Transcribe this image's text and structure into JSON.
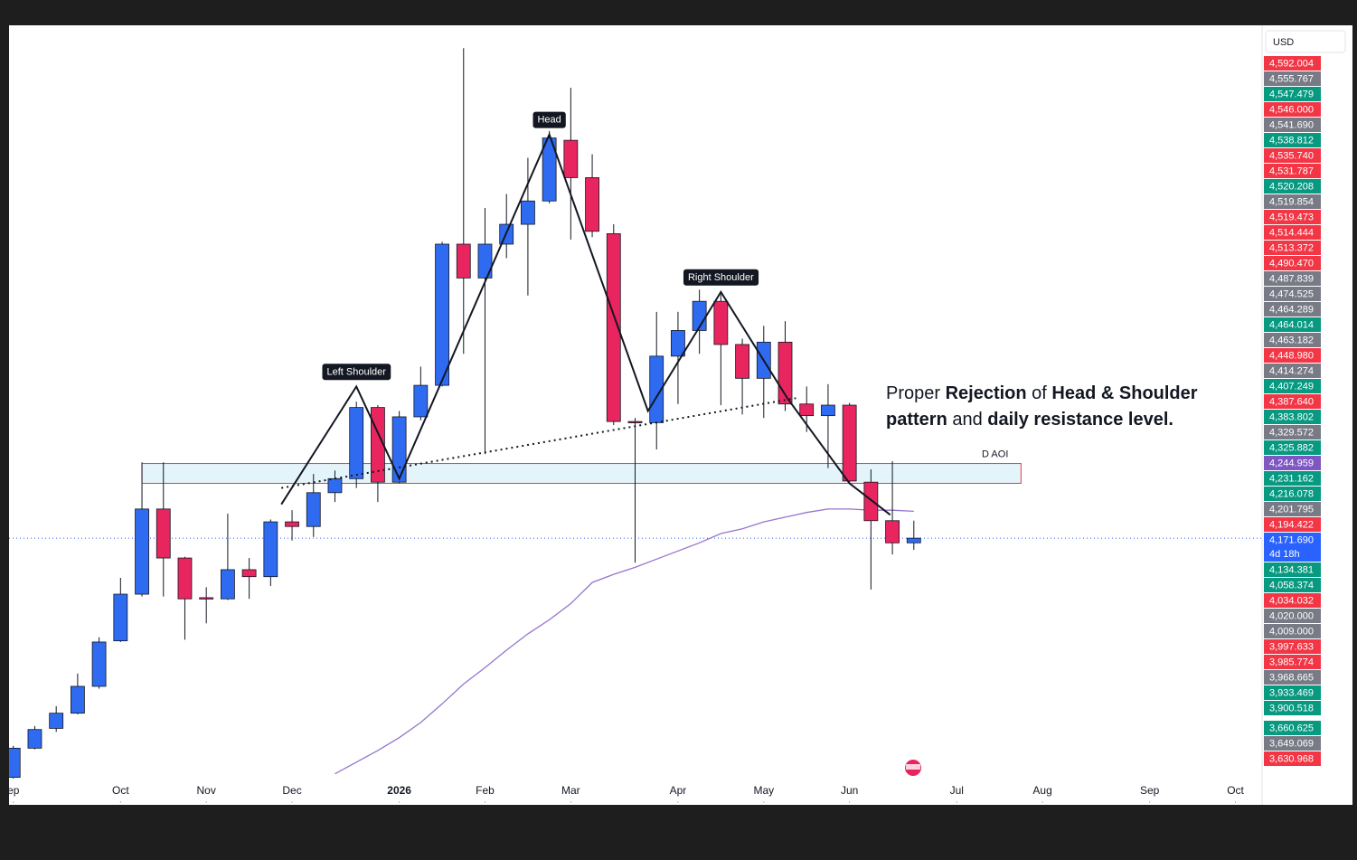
{
  "chart_data": {
    "type": "candlestick",
    "currency": "USD",
    "up_color": "#2f6bf0",
    "down_color": "#e8255f",
    "ma_color": "#9575cd",
    "xlim": [
      -0.2,
      58.2
    ],
    "ylim": [
      3945,
      4610
    ],
    "xticks": [
      {
        "value": 0,
        "label": "ep"
      },
      {
        "value": 5,
        "label": "Oct"
      },
      {
        "value": 9,
        "label": "Nov"
      },
      {
        "value": 13,
        "label": "Dec"
      },
      {
        "value": 18,
        "label": "2026"
      },
      {
        "value": 22,
        "label": "Feb"
      },
      {
        "value": 26,
        "label": "Mar"
      },
      {
        "value": 31,
        "label": "Apr"
      },
      {
        "value": 35,
        "label": "May"
      },
      {
        "value": 39,
        "label": "Jun"
      },
      {
        "value": 44,
        "label": "Jul"
      },
      {
        "value": 48,
        "label": "Aug"
      },
      {
        "value": 53,
        "label": "Sep"
      },
      {
        "value": 57,
        "label": "Oct"
      }
    ],
    "x": [
      0,
      1,
      2,
      3,
      4,
      5,
      6,
      7,
      8,
      9,
      10,
      11,
      12,
      13,
      14,
      15,
      16,
      17,
      18,
      19,
      20,
      21,
      22,
      23,
      24,
      25,
      26,
      27,
      28,
      29,
      30,
      31,
      32,
      33,
      34,
      35,
      36,
      37,
      38,
      39,
      40,
      41,
      42
    ],
    "open": [
      3967,
      3992,
      4009,
      4022,
      4045,
      4084,
      4124,
      4197,
      4155,
      4121,
      4120,
      4145,
      4139,
      4186,
      4182,
      4211,
      4223,
      4284,
      4220,
      4276,
      4303,
      4424,
      4395,
      4424,
      4441,
      4461,
      4513,
      4481,
      4433,
      4272,
      4271,
      4328,
      4350,
      4375,
      4338,
      4309,
      4340,
      4287,
      4277,
      4286,
      4220,
      4187,
      4168
    ],
    "high": [
      3994,
      4011,
      4028,
      4056,
      4087,
      4138,
      4237,
      4237,
      4156,
      4130,
      4193,
      4155,
      4188,
      4196,
      4227,
      4230,
      4289,
      4286,
      4281,
      4319,
      4426,
      4592,
      4455,
      4467,
      4498,
      4521,
      4558,
      4501,
      4441,
      4275,
      4366,
      4366,
      4385,
      4381,
      4343,
      4354,
      4358,
      4302,
      4304,
      4288,
      4231,
      4238,
      4187
    ],
    "low": [
      3966,
      3991,
      4006,
      4021,
      4043,
      4083,
      4122,
      4122,
      4085,
      4099,
      4119,
      4120,
      4131,
      4170,
      4173,
      4203,
      4215,
      4203,
      4219,
      4273,
      4302,
      4330,
      4244,
      4412,
      4380,
      4459,
      4428,
      4430,
      4269,
      4151,
      4248,
      4287,
      4330,
      4286,
      4278,
      4275,
      4281,
      4263,
      4232,
      4219,
      4128,
      4158,
      4162
    ],
    "close": [
      3992,
      4008,
      4022,
      4045,
      4083,
      4124,
      4197,
      4155,
      4120,
      4120,
      4145,
      4139,
      4186,
      4182,
      4211,
      4223,
      4284,
      4220,
      4276,
      4303,
      4424,
      4395,
      4424,
      4441,
      4461,
      4515,
      4481,
      4435,
      4272,
      4271,
      4328,
      4350,
      4375,
      4338,
      4309,
      4340,
      4287,
      4277,
      4286,
      4221,
      4187,
      4168,
      4172
    ],
    "ma": [
      null,
      null,
      null,
      null,
      null,
      null,
      null,
      null,
      null,
      null,
      null,
      null,
      null,
      null,
      null,
      3970,
      3980,
      3990,
      4001,
      4014,
      4030,
      4047,
      4061,
      4076,
      4090,
      4102,
      4116,
      4134,
      4141,
      4147,
      4154,
      4161,
      4168,
      4176,
      4180,
      4186,
      4190,
      4194,
      4197,
      4197,
      4196,
      4196,
      4195
    ],
    "pattern_x": [
      12.5,
      16,
      18,
      25,
      29.6,
      33,
      36.1,
      39,
      40.9
    ],
    "pattern_y": [
      4201,
      4302,
      4223,
      4518,
      4281,
      4383,
      4292,
      4219,
      4192
    ],
    "neckline_x": [
      12.5,
      36.5
    ],
    "neckline_y": [
      4215,
      4292
    ],
    "zone": {
      "label": "D AOI",
      "x": [
        6,
        47
      ],
      "y": [
        4219,
        4236
      ]
    },
    "labels": {
      "left": "Left Shoulder",
      "head": "Head",
      "right": "Right Shoulder"
    },
    "note": [
      [
        {
          "text": "Proper ",
          "bold": false
        },
        {
          "text": "Rejection",
          "bold": true
        },
        {
          "text": " of ",
          "bold": false
        },
        {
          "text": "Head & Shoulder",
          "bold": true
        }
      ],
      [
        {
          "text": "pattern",
          "bold": true
        },
        {
          "text": " and ",
          "bold": false
        },
        {
          "text": "daily resistance level.",
          "bold": true
        }
      ]
    ],
    "countdown": "4d 18h",
    "badges": [
      [
        {
          "label": "4,592.004",
          "color": "#f23645"
        },
        {
          "label": "4,555.767",
          "color": "#787b86"
        },
        {
          "label": "4,547.479",
          "color": "#089981"
        },
        {
          "label": "4,546.000",
          "color": "#f23645"
        },
        {
          "label": "4,541.690",
          "color": "#787b86"
        },
        {
          "label": "4,538.812",
          "color": "#089981"
        },
        {
          "label": "4,535.740",
          "color": "#f23645"
        },
        {
          "label": "4,531.787",
          "color": "#f23645"
        },
        {
          "label": "4,520.208",
          "color": "#089981"
        },
        {
          "label": "4,519.854",
          "color": "#787b86"
        },
        {
          "label": "4,519.473",
          "color": "#f23645"
        },
        {
          "label": "4,514.444",
          "color": "#f23645"
        },
        {
          "label": "4,513.372",
          "color": "#f23645"
        },
        {
          "label": "4,490.470",
          "color": "#f23645"
        },
        {
          "label": "4,487.839",
          "color": "#787b86"
        },
        {
          "label": "4,474.525",
          "color": "#787b86"
        },
        {
          "label": "4,464.289",
          "color": "#787b86"
        },
        {
          "label": "4,464.014",
          "color": "#089981"
        },
        {
          "label": "4,463.182",
          "color": "#787b86"
        },
        {
          "label": "4,448.980",
          "color": "#f23645"
        },
        {
          "label": "4,414.274",
          "color": "#787b86"
        },
        {
          "label": "4,407.249",
          "color": "#089981"
        },
        {
          "label": "4,387.640",
          "color": "#f23645"
        },
        {
          "label": "4,383.802",
          "color": "#089981"
        },
        {
          "label": "4,329.572",
          "color": "#787b86"
        },
        {
          "label": "4,325.882",
          "color": "#089981"
        },
        {
          "label": "4,244.959",
          "color": "#7e57c2"
        },
        {
          "label": "4,231.162",
          "color": "#089981"
        },
        {
          "label": "4,216.078",
          "color": "#089981"
        },
        {
          "label": "4,201.795",
          "color": "#787b86"
        },
        {
          "label": "4,194.422",
          "color": "#f23645"
        },
        {
          "label": "4,171.690",
          "color": "#2962ff"
        },
        {
          "label": "4,134.381",
          "color": "#089981"
        },
        {
          "label": "4,058.374",
          "color": "#089981"
        },
        {
          "label": "4,034.032",
          "color": "#f23645"
        },
        {
          "label": "4,020.000",
          "color": "#787b86"
        },
        {
          "label": "4,009.000",
          "color": "#787b86"
        },
        {
          "label": "3,997.633",
          "color": "#f23645"
        },
        {
          "label": "3,985.774",
          "color": "#f23645"
        },
        {
          "label": "3,968.665",
          "color": "#787b86"
        },
        {
          "label": "3,933.469",
          "color": "#089981"
        },
        {
          "label": "3,900.518",
          "color": "#089981"
        }
      ],
      [
        {
          "label": "3,660.625",
          "color": "#089981"
        },
        {
          "label": "3,649.069",
          "color": "#787b86"
        },
        {
          "label": "3,630.968",
          "color": "#f23645"
        }
      ]
    ]
  }
}
